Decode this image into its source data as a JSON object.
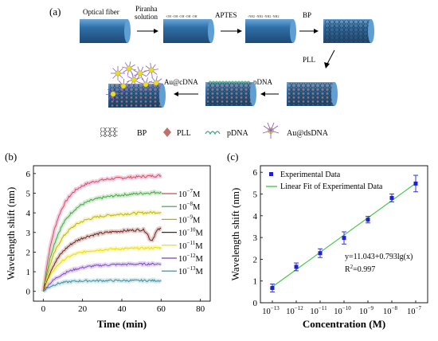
{
  "panels": {
    "a": "(a)",
    "b": "(b)",
    "c": "(c)"
  },
  "schematic": {
    "steps": {
      "optical_fiber": "Optical fiber",
      "piranha_line1": "Piranha",
      "piranha_line2": "solution",
      "aptes": "APTES",
      "bp": "BP",
      "pll": "PLL",
      "pdna": "pDNA",
      "au_cdna": "Au@cDNA"
    },
    "surface_labels": {
      "oh": "-OH",
      "nh2": "-NH2"
    },
    "legend": {
      "bp": "BP",
      "pll": "PLL",
      "pdna": "pDNA",
      "au_dsdna": "Au@dsDNA"
    },
    "colors": {
      "fiber_body": "#2f6fa8",
      "fiber_dark": "#1d4a76",
      "fiber_cap": "#5f9fd4",
      "bp_mesh": "#2a2a2a",
      "pll_dot": "#c0706a",
      "pdna_line": "#3aa37b",
      "au_np": "#e6dc2e",
      "dsdna_purple": "#8a5cc4"
    }
  },
  "chart_data": [
    {
      "type": "line",
      "panel": "(b)",
      "xlabel": "Time (min)",
      "ylabel": "Wavelength shift (nm)",
      "xlim": [
        -5,
        85
      ],
      "ylim": [
        -0.5,
        6.4
      ],
      "xticks": [
        0,
        20,
        40,
        60,
        80
      ],
      "yticks": [
        0,
        1,
        2,
        3,
        4,
        5,
        6
      ],
      "legend_position": "right",
      "series": [
        {
          "name": "10^-7M",
          "color": "#c0504d",
          "band": "#f4b6d6",
          "plateau": 5.6,
          "tau": 7.0,
          "drift": 0.005,
          "noise": 0.06,
          "dip": 0.0
        },
        {
          "name": "10^-8M",
          "color": "#3f9b3f",
          "band": "#bfe6bf",
          "plateau": 4.7,
          "tau": 8.0,
          "drift": 0.006,
          "noise": 0.06,
          "dip": 0.0
        },
        {
          "name": "10^-9M",
          "color": "#b8b000",
          "band": "#f2eda8",
          "plateau": 3.8,
          "tau": 8.0,
          "drift": 0.004,
          "noise": 0.06,
          "dip": 0.0
        },
        {
          "name": "10^-10M",
          "color": "#5a1a1a",
          "band": "#d9b7b0",
          "plateau": 2.95,
          "tau": 9.0,
          "drift": 0.004,
          "noise": 0.06,
          "dip": 0.55
        },
        {
          "name": "10^-11M",
          "color": "#e6d800",
          "band": "#fbf49a",
          "plateau": 2.1,
          "tau": 7.5,
          "drift": 0.002,
          "noise": 0.05,
          "dip": 0.0
        },
        {
          "name": "10^-12M",
          "color": "#7b3fb8",
          "band": "#d7c2ef",
          "plateau": 1.4,
          "tau": 10.0,
          "drift": 0.0,
          "noise": 0.05,
          "dip": 0.0
        },
        {
          "name": "10^-13M",
          "color": "#3b7f8f",
          "band": "#bfe3ea",
          "plateau": 0.55,
          "tau": 6.0,
          "drift": 0.0,
          "noise": 0.05,
          "dip": 0.0
        }
      ],
      "time_range": [
        0,
        60
      ],
      "legend_labels": [
        {
          "base": "10",
          "exp": "−7",
          "unit": "M"
        },
        {
          "base": "10",
          "exp": "−8",
          "unit": "M"
        },
        {
          "base": "10",
          "exp": "−9",
          "unit": "M"
        },
        {
          "base": "10",
          "exp": "−10",
          "unit": "M"
        },
        {
          "base": "10",
          "exp": "−11",
          "unit": "M"
        },
        {
          "base": "10",
          "exp": "−12",
          "unit": "M"
        },
        {
          "base": "10",
          "exp": "−13",
          "unit": "M"
        }
      ]
    },
    {
      "type": "scatter",
      "panel": "(c)",
      "xlabel": "Concentration (M)",
      "ylabel": "Wavelength shift (nm)",
      "x_scale": "log",
      "xlim_exp": [
        -13.5,
        -6.5
      ],
      "ylim": [
        0,
        6.3
      ],
      "yticks": [
        0,
        1,
        2,
        3,
        4,
        5,
        6
      ],
      "xtick_exponents": [
        -13,
        -12,
        -11,
        -10,
        -9,
        -8,
        -7
      ],
      "series": [
        {
          "name": "Experimental Data",
          "color": "#1f1fcf",
          "x_exp": [
            -13,
            -12,
            -11,
            -10,
            -9,
            -8,
            -7
          ],
          "y": [
            0.68,
            1.65,
            2.28,
            2.98,
            3.82,
            4.82,
            5.48
          ],
          "err": [
            0.18,
            0.18,
            0.2,
            0.28,
            0.15,
            0.18,
            0.38
          ]
        }
      ],
      "fit": {
        "name": "Linear Fit of Experimental Data",
        "color": "#49c749",
        "intercept": 11.043,
        "slope": 0.793
      },
      "legend": {
        "data_label": "Experimental Data",
        "fit_label": "Linear Fit of Experimental Data"
      },
      "annotations": {
        "equation": "y=11.043+0.793lg(x)",
        "r2_prefix": "R",
        "r2_suffix": "=0.997"
      }
    }
  ]
}
